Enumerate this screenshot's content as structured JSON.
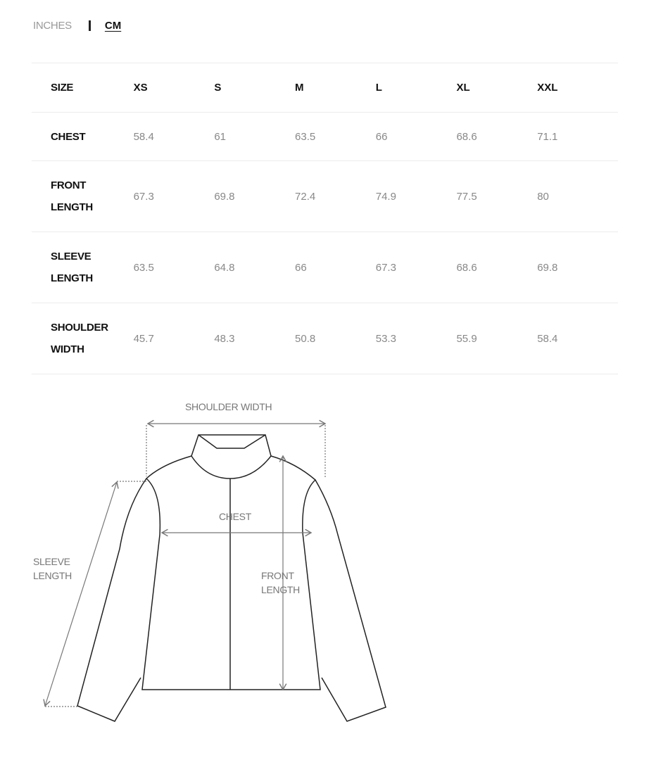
{
  "units": {
    "inches_label": "INCHES",
    "cm_label": "CM",
    "selected": "CM"
  },
  "table": {
    "header": [
      "SIZE",
      "XS",
      "S",
      "M",
      "L",
      "XL",
      "XXL"
    ],
    "rows": [
      {
        "label": "CHEST",
        "values": [
          "58.4",
          "61",
          "63.5",
          "66",
          "68.6",
          "71.1"
        ]
      },
      {
        "label": "FRONT LENGTH",
        "values": [
          "67.3",
          "69.8",
          "72.4",
          "74.9",
          "77.5",
          "80"
        ]
      },
      {
        "label": "SLEEVE LENGTH",
        "values": [
          "63.5",
          "64.8",
          "66",
          "67.3",
          "68.6",
          "69.8"
        ]
      },
      {
        "label": "SHOULDER WIDTH",
        "values": [
          "45.7",
          "48.3",
          "50.8",
          "53.3",
          "55.9",
          "58.4"
        ]
      }
    ]
  },
  "diagram": {
    "shoulder_width": "SHOULDER WIDTH",
    "chest": "CHEST",
    "sleeve_length": [
      "SLEEVE",
      "LENGTH"
    ],
    "front_length": [
      "FRONT",
      "LENGTH"
    ]
  }
}
